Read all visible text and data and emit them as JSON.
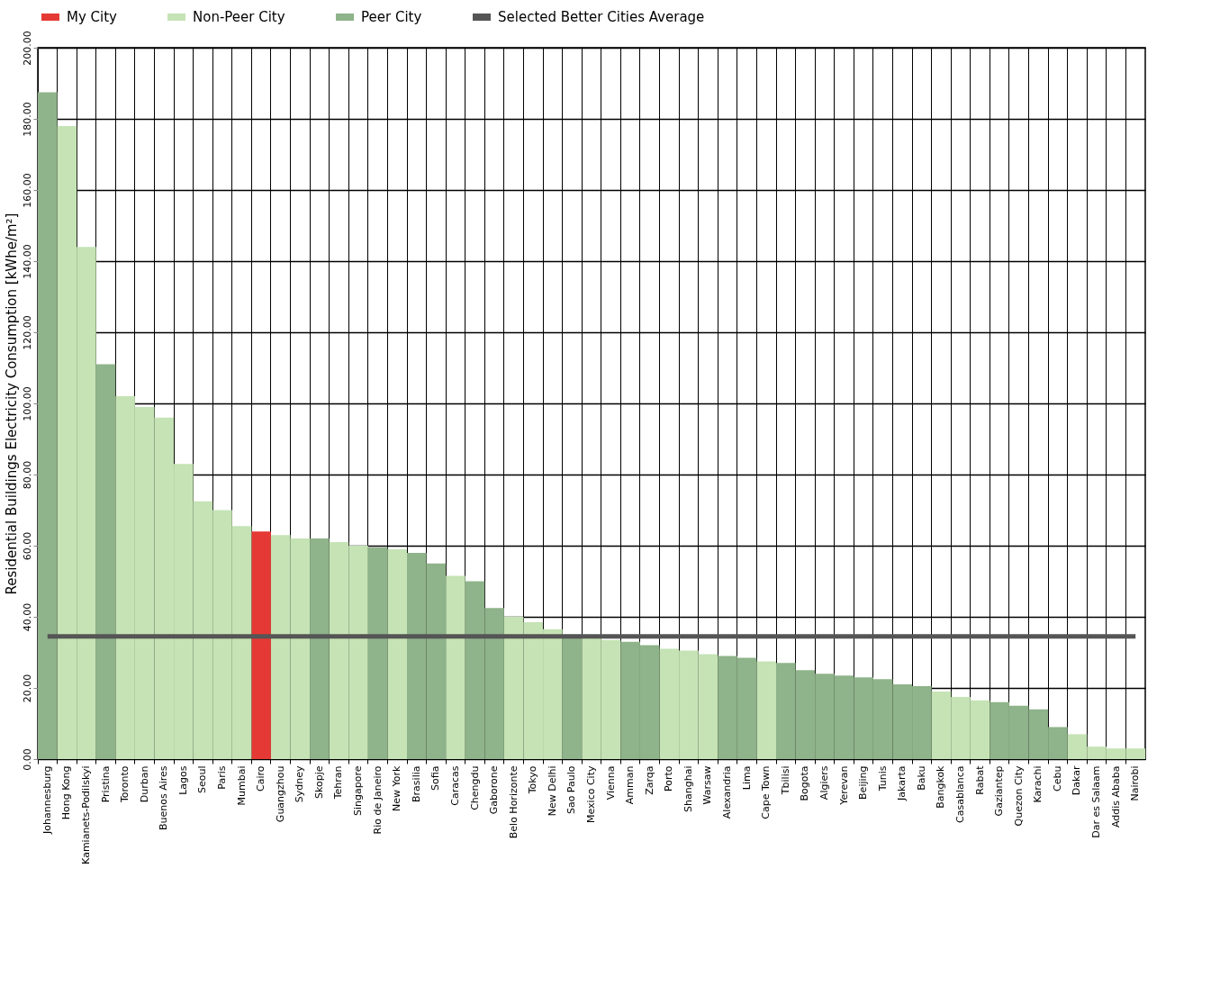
{
  "chart_data": {
    "type": "bar",
    "ylabel": "Residential Buildings Electricity Consumption [kWhe/m²]",
    "categories": [
      "Johannesburg",
      "Hong Kong",
      "Kamianets-Podilskyi",
      "Pristina",
      "Toronto",
      "Durban",
      "Buenos Aires",
      "Lagos",
      "Seoul",
      "Paris",
      "Mumbai",
      "Cairo",
      "Guangzhou",
      "Sydney",
      "Skopje",
      "Tehran",
      "Singapore",
      "Rio de Janeiro",
      "New York",
      "Brasilia",
      "Sofia",
      "Caracas",
      "Chengdu",
      "Gaborone",
      "Belo Horizonte",
      "Tokyo",
      "New Delhi",
      "Sao Paulo",
      "Mexico City",
      "Vienna",
      "Amman",
      "Zarqa",
      "Porto",
      "Shanghai",
      "Warsaw",
      "Alexandria",
      "Lima",
      "Cape Town",
      "Tbilisi",
      "Bogota",
      "Algiers",
      "Yerevan",
      "Beijing",
      "Tunis",
      "Jakarta",
      "Baku",
      "Bangkok",
      "Casablanca",
      "Rabat",
      "Gaziantep",
      "Quezon City",
      "Karachi",
      "Cebu",
      "Dakar",
      "Dar es Salaam",
      "Addis Ababa",
      "Nairobi"
    ],
    "series": [
      {
        "name": "My City",
        "color": "#e53935",
        "values": [
          null,
          null,
          null,
          null,
          null,
          null,
          null,
          null,
          null,
          null,
          null,
          64,
          null,
          null,
          null,
          null,
          null,
          null,
          null,
          null,
          null,
          null,
          null,
          null,
          null,
          null,
          null,
          null,
          null,
          null,
          null,
          null,
          null,
          null,
          null,
          null,
          null,
          null,
          null,
          null,
          null,
          null,
          null,
          null,
          null,
          null,
          null,
          null,
          null,
          null,
          null,
          null,
          null,
          null,
          null,
          null,
          null
        ]
      },
      {
        "name": "Non-Peer City",
        "color": "#c5e3b5",
        "values": [
          null,
          178,
          144,
          null,
          102,
          99,
          96,
          83,
          72.5,
          70,
          65.5,
          null,
          63,
          62,
          null,
          61,
          60,
          null,
          59,
          null,
          null,
          51.5,
          null,
          null,
          40,
          38.5,
          36.5,
          null,
          34,
          33.5,
          null,
          null,
          31,
          30.5,
          29.5,
          null,
          null,
          27.5,
          null,
          null,
          null,
          null,
          null,
          null,
          null,
          null,
          19,
          17.5,
          16.5,
          null,
          null,
          null,
          null,
          7,
          3.5,
          3,
          3
        ]
      },
      {
        "name": "Peer City",
        "color": "#8fb38a",
        "values": [
          187.5,
          null,
          null,
          111,
          null,
          null,
          null,
          null,
          null,
          null,
          null,
          null,
          null,
          null,
          62,
          null,
          null,
          59.5,
          null,
          58,
          55,
          null,
          50,
          42.5,
          null,
          null,
          null,
          35,
          null,
          null,
          33,
          32,
          null,
          null,
          null,
          29,
          28.5,
          null,
          27,
          25,
          24,
          23.5,
          23,
          22.5,
          21,
          20.5,
          null,
          null,
          null,
          16,
          15,
          14,
          9,
          null,
          null,
          null,
          null
        ]
      },
      {
        "name": "Selected Better Cities Average",
        "type": "line",
        "color": "#555555",
        "values": [
          34.5,
          34.5,
          34.5,
          34.5,
          34.5,
          34.5,
          34.5,
          34.5,
          34.5,
          34.5,
          34.5,
          34.5,
          34.5,
          34.5,
          34.5,
          34.5,
          34.5,
          34.5,
          34.5,
          34.5,
          34.5,
          34.5,
          34.5,
          34.5,
          34.5,
          34.5,
          34.5,
          34.5,
          34.5,
          34.5,
          34.5,
          34.5,
          34.5,
          34.5,
          34.5,
          34.5,
          34.5,
          34.5,
          34.5,
          34.5,
          34.5,
          34.5,
          34.5,
          34.5,
          34.5,
          34.5,
          34.5,
          34.5,
          34.5,
          34.5,
          34.5,
          34.5,
          34.5,
          34.5,
          34.5,
          34.5,
          34.5
        ]
      }
    ],
    "ylim": [
      0,
      200
    ],
    "yticks": [
      {
        "value": 0,
        "label": "0.00"
      },
      {
        "value": 20,
        "label": "20.00"
      },
      {
        "value": 40,
        "label": "40.00"
      },
      {
        "value": 60,
        "label": "60.00"
      },
      {
        "value": 80,
        "label": "80.00"
      },
      {
        "value": 100,
        "label": "100.00"
      },
      {
        "value": 120,
        "label": "120.00"
      },
      {
        "value": 140,
        "label": "140.00"
      },
      {
        "value": 160,
        "label": "160.00"
      },
      {
        "value": 180,
        "label": "180.00"
      },
      {
        "value": 200,
        "label": "200.00"
      }
    ],
    "grid": true,
    "legend": "top"
  }
}
